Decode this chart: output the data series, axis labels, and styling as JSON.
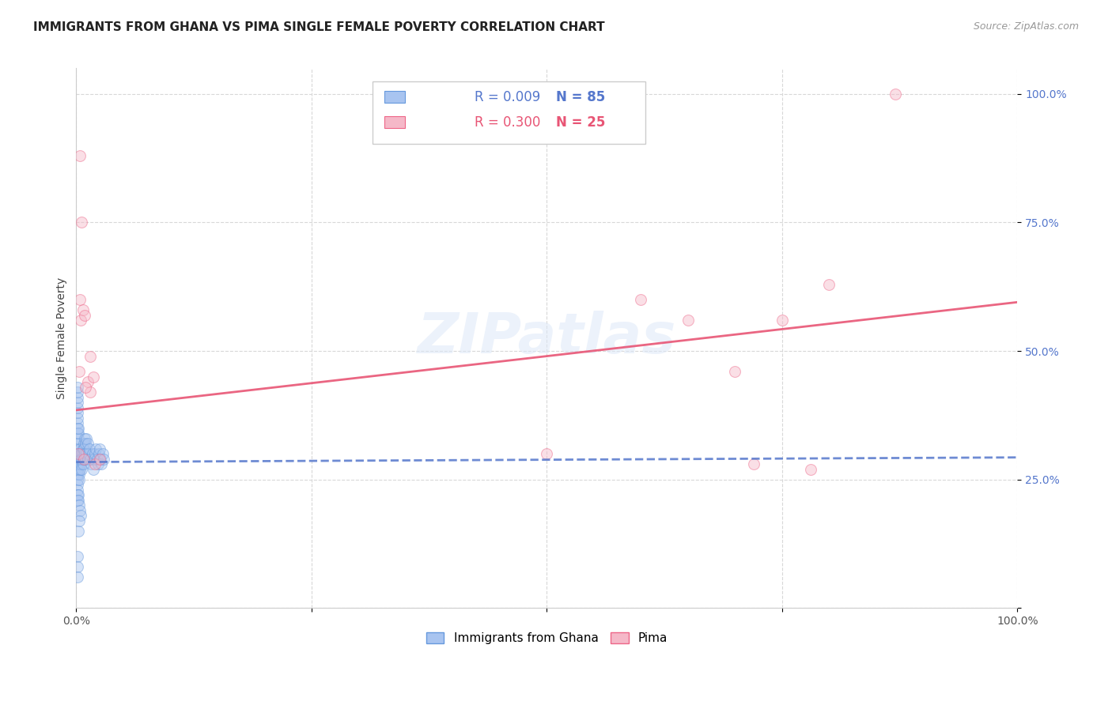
{
  "title": "IMMIGRANTS FROM GHANA VS PIMA SINGLE FEMALE POVERTY CORRELATION CHART",
  "source": "Source: ZipAtlas.com",
  "ylabel": "Single Female Poverty",
  "legend_label1": "Immigrants from Ghana",
  "legend_label2": "Pima",
  "legend_r1": "R = 0.009",
  "legend_n1": "N = 85",
  "legend_r2": "R = 0.300",
  "legend_n2": "N = 25",
  "watermark": "ZIPatlas",
  "blue_fill": "#a8c4f0",
  "blue_edge": "#6699dd",
  "pink_fill": "#f5b8c8",
  "pink_edge": "#ee6688",
  "blue_trend_color": "#5577cc",
  "pink_trend_color": "#e85575",
  "grid_color": "#d8d8d8",
  "background_color": "#ffffff",
  "blue_scatter_x": [
    0.001,
    0.001,
    0.001,
    0.001,
    0.001,
    0.001,
    0.001,
    0.001,
    0.001,
    0.001,
    0.001,
    0.001,
    0.001,
    0.001,
    0.001,
    0.001,
    0.001,
    0.001,
    0.001,
    0.001,
    0.002,
    0.002,
    0.002,
    0.002,
    0.002,
    0.002,
    0.002,
    0.002,
    0.002,
    0.002,
    0.003,
    0.003,
    0.003,
    0.003,
    0.003,
    0.003,
    0.003,
    0.004,
    0.004,
    0.004,
    0.004,
    0.004,
    0.005,
    0.005,
    0.005,
    0.005,
    0.006,
    0.006,
    0.006,
    0.007,
    0.007,
    0.007,
    0.008,
    0.008,
    0.008,
    0.009,
    0.009,
    0.01,
    0.01,
    0.011,
    0.011,
    0.012,
    0.012,
    0.013,
    0.014,
    0.015,
    0.016,
    0.017,
    0.018,
    0.019,
    0.02,
    0.021,
    0.022,
    0.023,
    0.024,
    0.025,
    0.026,
    0.027,
    0.028,
    0.029,
    0.001,
    0.001,
    0.001,
    0.002,
    0.003
  ],
  "blue_scatter_y": [
    0.28,
    0.3,
    0.32,
    0.34,
    0.35,
    0.36,
    0.37,
    0.38,
    0.39,
    0.4,
    0.41,
    0.42,
    0.43,
    0.27,
    0.26,
    0.25,
    0.24,
    0.23,
    0.22,
    0.21,
    0.28,
    0.29,
    0.3,
    0.31,
    0.32,
    0.33,
    0.34,
    0.35,
    0.22,
    0.21,
    0.28,
    0.29,
    0.3,
    0.27,
    0.26,
    0.25,
    0.2,
    0.29,
    0.3,
    0.31,
    0.27,
    0.19,
    0.3,
    0.29,
    0.28,
    0.18,
    0.3,
    0.29,
    0.27,
    0.31,
    0.3,
    0.28,
    0.32,
    0.31,
    0.29,
    0.33,
    0.3,
    0.32,
    0.29,
    0.33,
    0.3,
    0.32,
    0.29,
    0.3,
    0.31,
    0.29,
    0.28,
    0.3,
    0.27,
    0.29,
    0.3,
    0.31,
    0.29,
    0.28,
    0.3,
    0.31,
    0.29,
    0.28,
    0.3,
    0.29,
    0.1,
    0.08,
    0.06,
    0.15,
    0.17
  ],
  "pink_scatter_x": [
    0.004,
    0.005,
    0.006,
    0.007,
    0.009,
    0.012,
    0.015,
    0.015,
    0.018,
    0.02,
    0.025,
    0.5,
    0.6,
    0.65,
    0.7,
    0.72,
    0.75,
    0.78,
    0.8,
    0.87,
    0.002,
    0.003,
    0.004,
    0.008,
    0.01
  ],
  "pink_scatter_y": [
    0.6,
    0.56,
    0.75,
    0.58,
    0.57,
    0.44,
    0.49,
    0.42,
    0.45,
    0.28,
    0.29,
    0.3,
    0.6,
    0.56,
    0.46,
    0.28,
    0.56,
    0.27,
    0.63,
    1.0,
    0.3,
    0.46,
    0.88,
    0.29,
    0.43
  ],
  "blue_trend_x": [
    0.0,
    1.0
  ],
  "blue_trend_y": [
    0.284,
    0.293
  ],
  "pink_trend_x": [
    0.0,
    1.0
  ],
  "pink_trend_y": [
    0.385,
    0.595
  ],
  "xlim": [
    0.0,
    1.0
  ],
  "ylim": [
    0.0,
    1.05
  ],
  "ytick_positions": [
    0.0,
    0.25,
    0.5,
    0.75,
    1.0
  ],
  "ytick_labels": [
    "",
    "25.0%",
    "50.0%",
    "75.0%",
    "100.0%"
  ],
  "xtick_positions": [
    0.0,
    0.25,
    0.5,
    0.75,
    1.0
  ],
  "xtick_labels": [
    "0.0%",
    "",
    "",
    "",
    "100.0%"
  ],
  "title_fontsize": 11,
  "source_fontsize": 9,
  "axis_label_fontsize": 10,
  "tick_fontsize": 10,
  "legend_fontsize": 12,
  "marker_size": 100,
  "marker_alpha": 0.45,
  "trend_linewidth": 2.0,
  "tick_color": "#5577cc"
}
